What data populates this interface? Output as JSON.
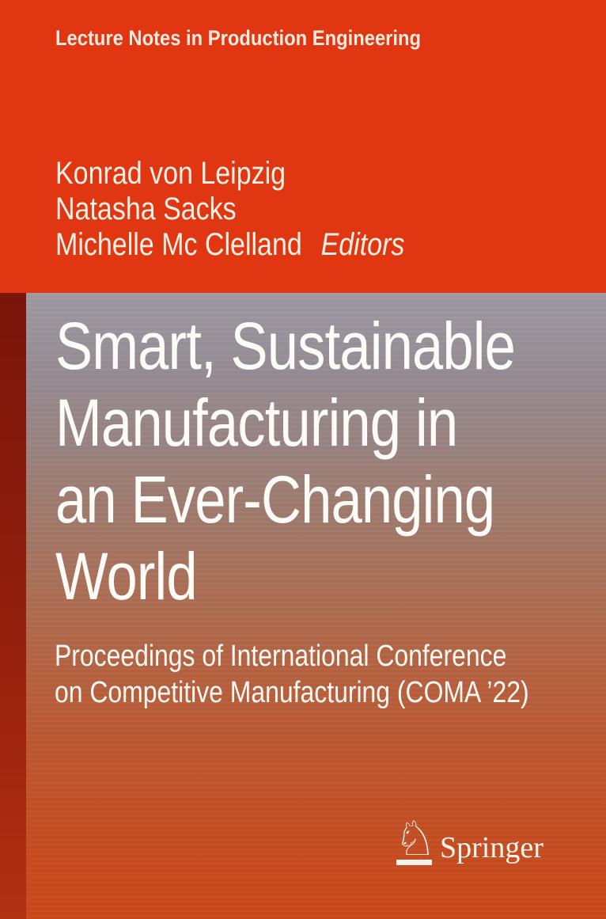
{
  "cover": {
    "series_title": "Lecture Notes in Production Engineering",
    "editors": {
      "names": [
        "Konrad von Leipzig",
        "Natasha Sacks",
        "Michelle Mc Clelland"
      ],
      "role_label": "Editors"
    },
    "title_lines": [
      "Smart, Sustainable",
      "Manufacturing in",
      "an Ever-Changing",
      "World"
    ],
    "subtitle_lines": [
      "Proceedings of International Conference",
      "on Competitive Manufacturing (COMA ’22)"
    ],
    "publisher": {
      "name": "Springer",
      "logo_glyph": "♘"
    },
    "colors": {
      "band_red": "#e03611",
      "strip_top": "#7a150a",
      "strip_bottom": "#b13113",
      "panel_top_gray": "#a09aa3",
      "panel_bottom_red": "#cb491b",
      "text_cream": "#f3ebdf"
    }
  }
}
